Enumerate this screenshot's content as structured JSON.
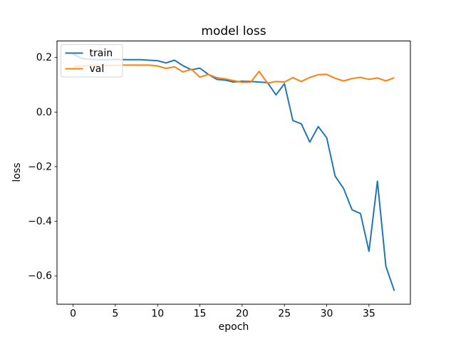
{
  "figure": {
    "background": "#ffffff",
    "spine_color": "#000000",
    "legend": {
      "position": "upper left",
      "frame_fill": "#ffffff",
      "frame_opacity": 0.8,
      "frame_border": "#d5d5d5",
      "entries": [
        {
          "label": "train",
          "color": "#1f77b4"
        },
        {
          "label": "val",
          "color": "#ff7f0e"
        }
      ]
    }
  },
  "chart_data": {
    "type": "line",
    "title": "model loss",
    "xlabel": "epoch",
    "ylabel": "loss",
    "grid": false,
    "legend_position": "upper left",
    "xlim": [
      -1.9,
      39.9
    ],
    "ylim": [
      -0.704,
      0.2605
    ],
    "xticks": [
      0,
      5,
      10,
      15,
      20,
      25,
      30,
      35
    ],
    "yticks": [
      0.2,
      0.0,
      -0.2,
      -0.4,
      -0.6
    ],
    "x": [
      0,
      1,
      2,
      3,
      4,
      5,
      6,
      7,
      8,
      9,
      10,
      11,
      12,
      13,
      14,
      15,
      16,
      17,
      18,
      19,
      20,
      21,
      22,
      23,
      24,
      25,
      26,
      27,
      28,
      29,
      30,
      31,
      32,
      33,
      34,
      35,
      36,
      37,
      38
    ],
    "series": [
      {
        "name": "train",
        "color": "#1f77b4",
        "values": [
          0.213,
          0.197,
          0.193,
          0.192,
          0.192,
          0.193,
          0.192,
          0.192,
          0.192,
          0.19,
          0.188,
          0.18,
          0.19,
          0.17,
          0.155,
          0.161,
          0.138,
          0.12,
          0.117,
          0.11,
          0.113,
          0.112,
          0.11,
          0.108,
          0.063,
          0.104,
          -0.031,
          -0.043,
          -0.11,
          -0.053,
          -0.094,
          -0.235,
          -0.28,
          -0.358,
          -0.372,
          -0.51,
          -0.253,
          -0.565,
          -0.655
        ]
      },
      {
        "name": "val",
        "color": "#ff7f0e",
        "values": [
          0.166,
          0.169,
          0.17,
          0.171,
          0.171,
          0.171,
          0.172,
          0.172,
          0.172,
          0.172,
          0.169,
          0.16,
          0.166,
          0.147,
          0.157,
          0.128,
          0.138,
          0.126,
          0.122,
          0.115,
          0.109,
          0.109,
          0.149,
          0.106,
          0.112,
          0.11,
          0.126,
          0.112,
          0.127,
          0.137,
          0.138,
          0.124,
          0.114,
          0.123,
          0.127,
          0.12,
          0.125,
          0.114,
          0.126
        ]
      }
    ]
  }
}
